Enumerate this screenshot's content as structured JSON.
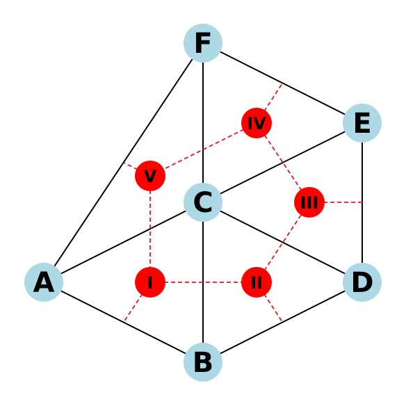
{
  "diagram": {
    "colors": {
      "primal_node": "#add8e6",
      "dual_node": "#ff0000",
      "primal_edge": "#000000",
      "dual_edge": "#e8151b"
    },
    "primal_nodes": [
      {
        "id": "A",
        "label": "A"
      },
      {
        "id": "B",
        "label": "B"
      },
      {
        "id": "C",
        "label": "C"
      },
      {
        "id": "D",
        "label": "D"
      },
      {
        "id": "E",
        "label": "E"
      },
      {
        "id": "F",
        "label": "F"
      }
    ],
    "primal_edges": [
      [
        "A",
        "B"
      ],
      [
        "A",
        "C"
      ],
      [
        "A",
        "F"
      ],
      [
        "B",
        "C"
      ],
      [
        "B",
        "D"
      ],
      [
        "C",
        "D"
      ],
      [
        "C",
        "E"
      ],
      [
        "C",
        "F"
      ],
      [
        "D",
        "E"
      ],
      [
        "E",
        "F"
      ]
    ],
    "dual_nodes": [
      {
        "id": "I",
        "label": "I"
      },
      {
        "id": "II",
        "label": "II"
      },
      {
        "id": "III",
        "label": "III"
      },
      {
        "id": "IV",
        "label": "IV"
      },
      {
        "id": "V",
        "label": "V"
      }
    ],
    "dual_edges": [
      [
        "I",
        "II"
      ],
      [
        "II",
        "III"
      ],
      [
        "III",
        "IV"
      ],
      [
        "IV",
        "V"
      ],
      [
        "V",
        "I"
      ]
    ],
    "dual_half_edges": [
      "I",
      "II",
      "III",
      "IV",
      "V"
    ]
  }
}
